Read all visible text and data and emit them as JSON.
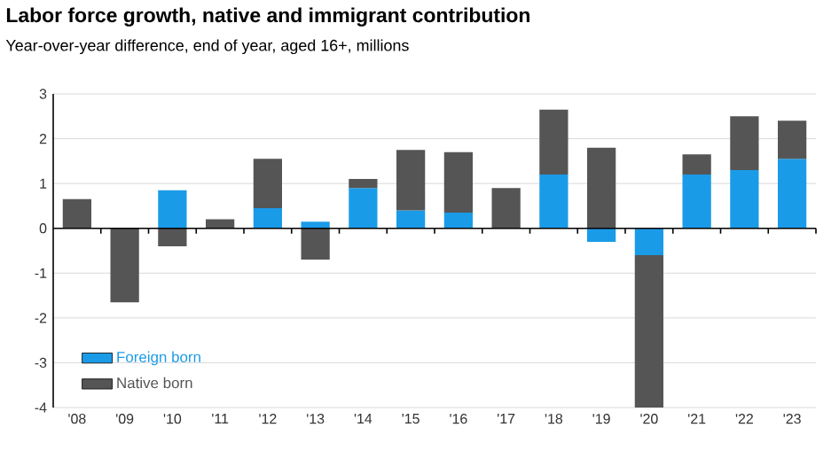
{
  "chart_data": {
    "type": "bar",
    "title": "Labor force growth, native and immigrant contribution",
    "subtitle": "Year-over-year difference, end of year, aged 16+, millions",
    "categories": [
      "'08",
      "'09",
      "'10",
      "'11",
      "'12",
      "'13",
      "'14",
      "'15",
      "'16",
      "'17",
      "'18",
      "'19",
      "'20",
      "'21",
      "'22",
      "'23"
    ],
    "series": [
      {
        "name": "Foreign born",
        "color": "#1a9be8",
        "values": [
          0,
          0,
          0.85,
          0,
          0.45,
          0.15,
          0.9,
          0.4,
          0.35,
          0,
          1.2,
          -0.3,
          -0.6,
          1.2,
          1.3,
          1.55
        ]
      },
      {
        "name": "Native born",
        "color": "#555555",
        "values": [
          0.65,
          -1.65,
          -0.4,
          0.2,
          1.1,
          -0.7,
          0.2,
          1.35,
          1.35,
          0.9,
          1.45,
          1.8,
          -3.4,
          0.45,
          1.2,
          0.85
        ]
      }
    ],
    "stacked": true,
    "ylim": [
      -4,
      3
    ],
    "yticks": [
      -4,
      -3,
      -2,
      -1,
      0,
      1,
      2,
      3
    ],
    "grid": "y",
    "legend": "bottom left"
  }
}
